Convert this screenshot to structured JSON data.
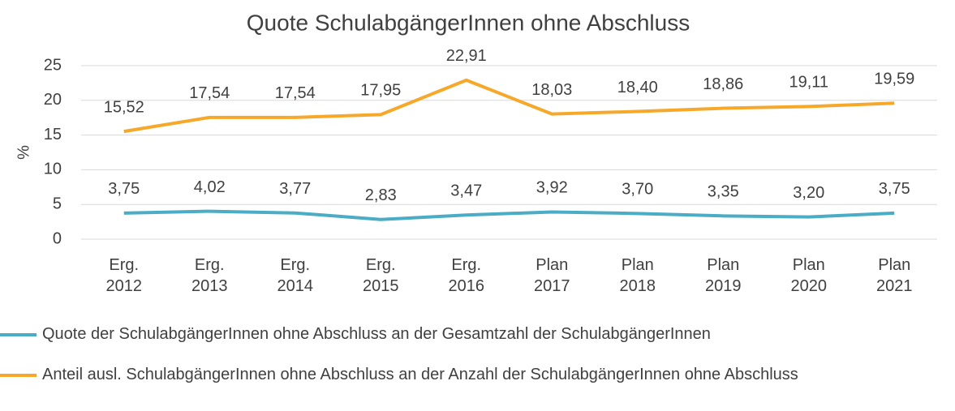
{
  "chart_data": {
    "type": "line",
    "title": "Quote SchulabgängerInnen ohne Abschluss",
    "y_label": "%",
    "categories": [
      "Erg. 2012",
      "Erg. 2013",
      "Erg. 2014",
      "Erg. 2015",
      "Erg. 2016",
      "Plan 2017",
      "Plan 2018",
      "Plan 2019",
      "Plan 2020",
      "Plan 2021"
    ],
    "series": [
      {
        "name": "Quote der SchulabgängerInnen ohne Abschluss an der Gesamtzahl der SchulabgängerInnen",
        "color": "#4bacc6",
        "values": [
          3.75,
          4.02,
          3.77,
          2.83,
          3.47,
          3.92,
          3.7,
          3.35,
          3.2,
          3.75
        ],
        "value_labels": [
          "3,75",
          "4,02",
          "3,77",
          "2,83",
          "3,47",
          "3,92",
          "3,70",
          "3,35",
          "3,20",
          "3,75"
        ]
      },
      {
        "name": "Anteil ausl. SchulabgängerInnen ohne Abschluss an der Anzahl der SchulabgängerInnen ohne Abschluss",
        "color": "#f5a82a",
        "values": [
          15.52,
          17.54,
          17.54,
          17.95,
          22.91,
          18.03,
          18.4,
          18.86,
          19.11,
          19.59
        ],
        "value_labels": [
          "15,52",
          "17,54",
          "17,54",
          "17,95",
          "22,91",
          "18,03",
          "18,40",
          "18,86",
          "19,11",
          "19,59"
        ]
      }
    ],
    "ylim": [
      0,
      25
    ],
    "yticks": [
      0,
      5,
      10,
      15,
      20,
      25
    ],
    "grid": true,
    "legend": "bottom"
  }
}
